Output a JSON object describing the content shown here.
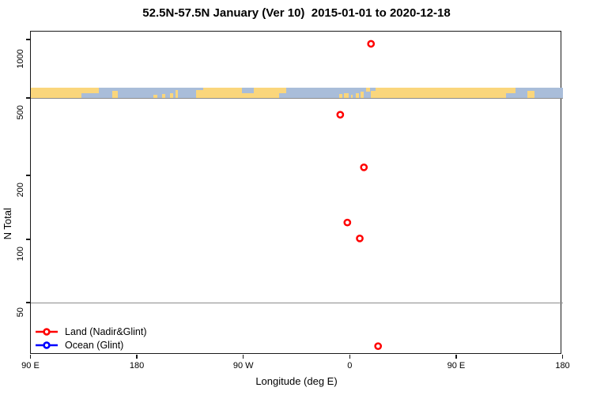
{
  "window": {
    "title": "52.5N-57.5N January (Ver 10)  2015-01-01 to 2020-12-18"
  },
  "chart_data": {
    "type": "scatter",
    "title": "52.5N-57.5N January (Ver 10)  2015-01-01 to 2020-12-18",
    "xlabel": "Longitude (deg E)",
    "ylabel": "N Total",
    "x_axis": {
      "range": [
        -270,
        180
      ],
      "note": "longitude wraps: -270 rendered as 90 E",
      "ticks": [
        {
          "lon": -270,
          "label": "90 E"
        },
        {
          "lon": -180,
          "label": "180"
        },
        {
          "lon": -90,
          "label": "90 W"
        },
        {
          "lon": 0,
          "label": "0"
        },
        {
          "lon": 90,
          "label": "90 E"
        },
        {
          "lon": 180,
          "label": "180"
        }
      ]
    },
    "y_axis": {
      "scale": "log",
      "range": [
        28,
        1100
      ],
      "ticks": [
        {
          "value": 1000,
          "label": "1000"
        },
        {
          "value": 500,
          "label": "500"
        },
        {
          "value": 200,
          "label": "200"
        },
        {
          "value": 100,
          "label": "100"
        },
        {
          "value": 50,
          "label": "50"
        }
      ]
    },
    "reference_lines": [
      {
        "value": 500
      },
      {
        "value": 50
      }
    ],
    "series": [
      {
        "name": "Land (Nadir&Glint)",
        "color": "#ff0000",
        "marker": "open-circle",
        "points": [
          {
            "lon": 18,
            "n": 950
          },
          {
            "lon": -8,
            "n": 410
          },
          {
            "lon": 12,
            "n": 220
          },
          {
            "lon": -2,
            "n": 120
          },
          {
            "lon": 8.5,
            "n": 101
          },
          {
            "lon": 24,
            "n": 31
          }
        ]
      },
      {
        "name": "Ocean (Glint)",
        "color": "#0000ff",
        "marker": "open-circle",
        "points": []
      }
    ],
    "map_strip": {
      "description": "land/ocean map band for 52.5N-57.5N plotted at N=500",
      "ocean_color": "#a9bdd9",
      "land_color": "#fad67c",
      "lon_range": [
        -270,
        180
      ],
      "land_segments": [
        {
          "lon0": -270,
          "lon1": -227,
          "band": "full",
          "frac": 1
        },
        {
          "lon0": -227,
          "lon1": -212,
          "band": "top",
          "frac": 0.55
        },
        {
          "lon0": -201,
          "lon1": -196,
          "band": "bottom",
          "frac": 0.7
        },
        {
          "lon0": -166,
          "lon1": -163,
          "band": "bottom",
          "frac": 0.3
        },
        {
          "lon0": -159,
          "lon1": -156,
          "band": "bottom",
          "frac": 0.35
        },
        {
          "lon0": -152,
          "lon1": -149,
          "band": "bottom",
          "frac": 0.45
        },
        {
          "lon0": -147,
          "lon1": -145,
          "band": "bottom",
          "frac": 0.8
        },
        {
          "lon0": -130,
          "lon1": -124,
          "band": "bottom",
          "frac": 0.75
        },
        {
          "lon0": -124,
          "lon1": -91,
          "band": "full",
          "frac": 1
        },
        {
          "lon0": -91,
          "lon1": -81,
          "band": "bottom",
          "frac": 0.5
        },
        {
          "lon0": -81,
          "lon1": -60,
          "band": "full",
          "frac": 1
        },
        {
          "lon0": -60,
          "lon1": -54,
          "band": "top",
          "frac": 0.5
        },
        {
          "lon0": -9,
          "lon1": -6,
          "band": "bottom",
          "frac": 0.35
        },
        {
          "lon0": -5,
          "lon1": -1,
          "band": "bottom",
          "frac": 0.5
        },
        {
          "lon0": 1,
          "lon1": 2.5,
          "band": "bottom",
          "frac": 0.3
        },
        {
          "lon0": 5,
          "lon1": 8,
          "band": "bottom",
          "frac": 0.5
        },
        {
          "lon0": 9,
          "lon1": 12,
          "band": "bottom",
          "frac": 0.65
        },
        {
          "lon0": 14,
          "lon1": 17,
          "band": "top",
          "frac": 0.35
        },
        {
          "lon0": 18,
          "lon1": 22,
          "band": "bottom",
          "frac": 0.7
        },
        {
          "lon0": 22,
          "lon1": 132,
          "band": "full",
          "frac": 1
        },
        {
          "lon0": 132,
          "lon1": 140,
          "band": "top",
          "frac": 0.55
        },
        {
          "lon0": 150,
          "lon1": 156,
          "band": "bottom",
          "frac": 0.7
        }
      ]
    },
    "legend_position": "bottom-left inside plot, no border"
  },
  "legend": {
    "items": [
      {
        "label": "Land (Nadir&Glint)",
        "color": "#ff0000",
        "marker": "line-with-open-circle"
      },
      {
        "label": "Ocean (Glint)",
        "color": "#0000ff",
        "marker": "line-with-open-circle"
      }
    ]
  }
}
